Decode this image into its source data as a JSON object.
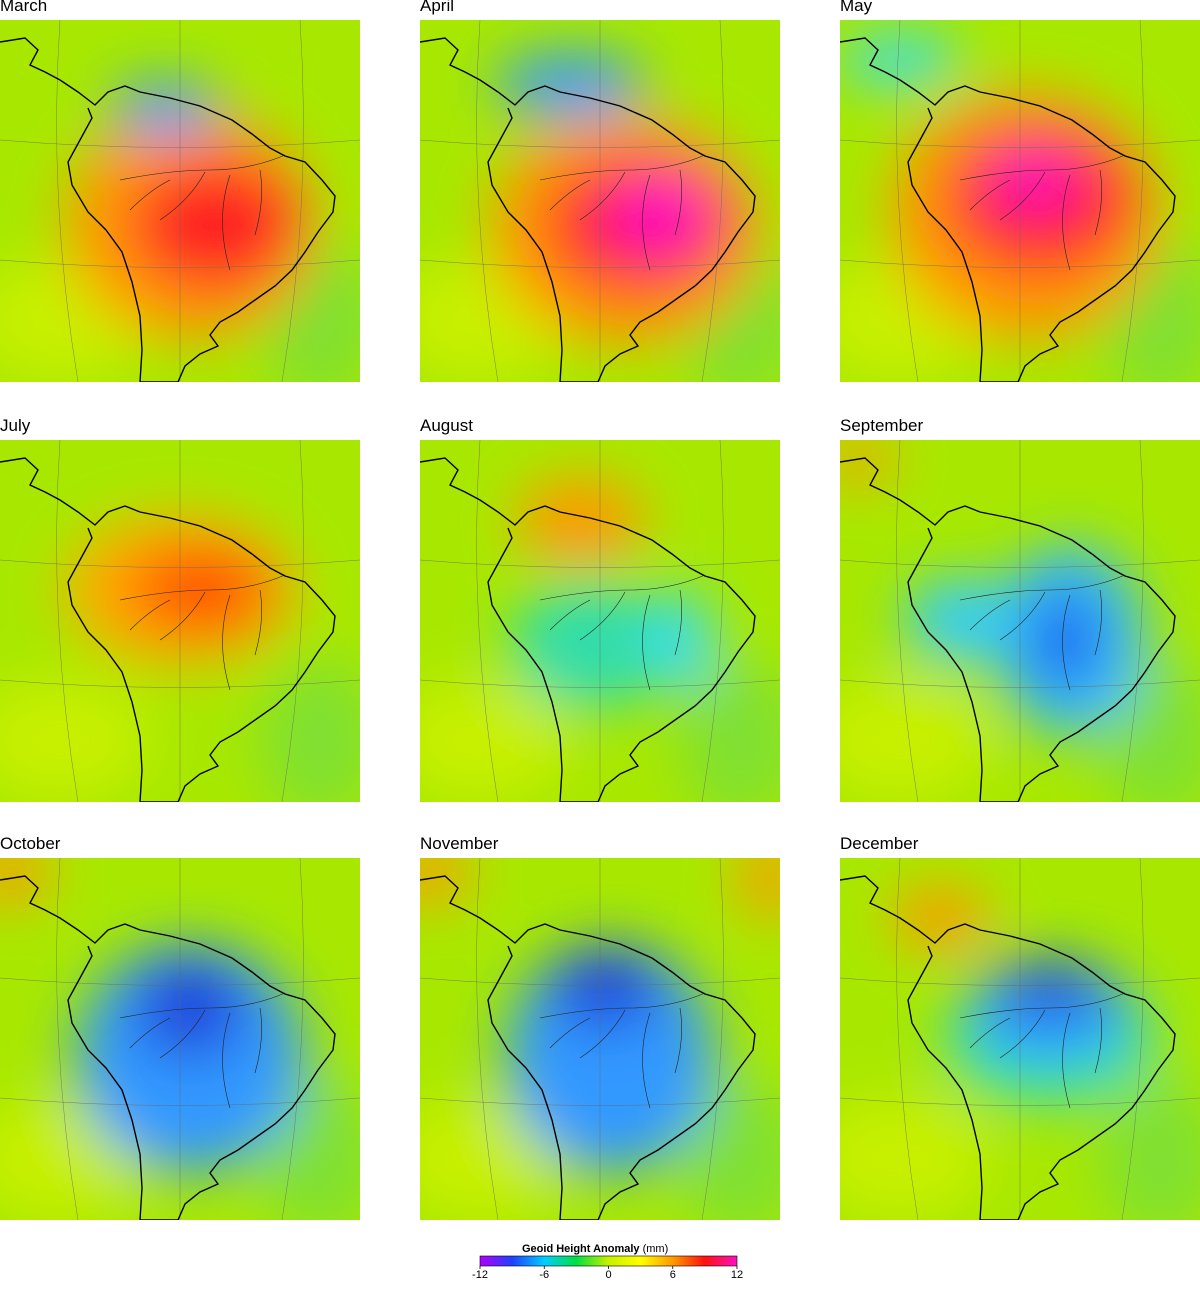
{
  "panels": [
    {
      "title": "March"
    },
    {
      "title": "April"
    },
    {
      "title": "May"
    },
    {
      "title": "July"
    },
    {
      "title": "August"
    },
    {
      "title": "September"
    },
    {
      "title": "October"
    },
    {
      "title": "November"
    },
    {
      "title": "December"
    }
  ],
  "colorbar": {
    "title": "Geoid Height Anomaly",
    "unit": "(mm)",
    "lim": [
      -12,
      12
    ],
    "ticks": [
      -12,
      -6,
      0,
      6,
      12
    ],
    "colors": [
      "#b000ff",
      "#2040ff",
      "#00ccff",
      "#00e040",
      "#c8f000",
      "#ffff00",
      "#ff9900",
      "#ff1010",
      "#ff10c0"
    ]
  }
}
